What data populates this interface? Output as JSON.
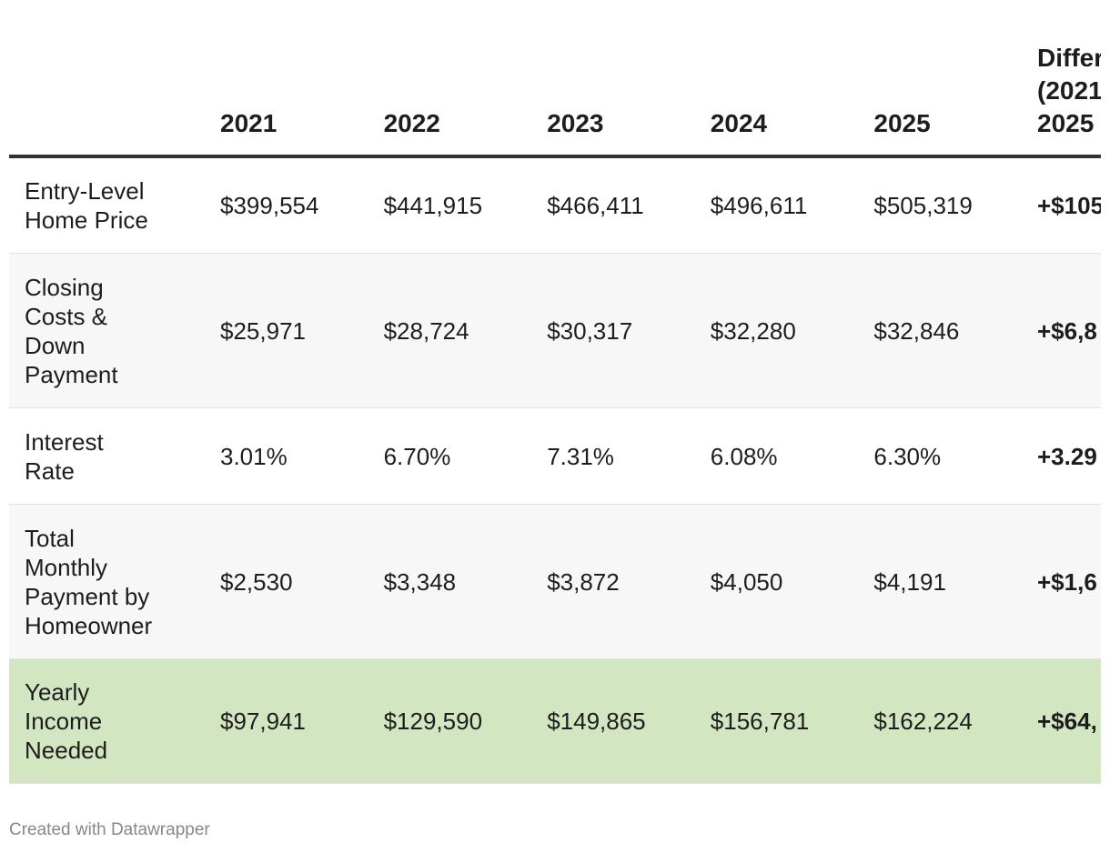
{
  "header": {
    "columns": [
      "2021",
      "2022",
      "2023",
      "2024",
      "2025"
    ],
    "last_column": [
      "Differ",
      "(2021",
      "2025"
    ]
  },
  "table": {
    "rows": [
      {
        "label": [
          "Entry-Level",
          "Home Price"
        ],
        "cells": [
          "$399,554",
          "$441,915",
          "$466,411",
          "$496,611",
          "$505,319"
        ],
        "difference": "+$105"
      },
      {
        "label": [
          "Closing",
          "Costs &",
          "Down",
          "Payment"
        ],
        "cells": [
          "$25,971",
          "$28,724",
          "$30,317",
          "$32,280",
          "$32,846"
        ],
        "difference": "+$6,8"
      },
      {
        "label": [
          "Interest",
          "Rate"
        ],
        "cells": [
          "3.01%",
          "6.70%",
          "7.31%",
          "6.08%",
          "6.30%"
        ],
        "difference": "+3.29"
      },
      {
        "label": [
          "Total",
          "Monthly",
          "Payment by",
          "Homeowner"
        ],
        "cells": [
          "$2,530",
          "$3,348",
          "$3,872",
          "$4,050",
          "$4,191"
        ],
        "difference": "+$1,6"
      },
      {
        "label": [
          "Yearly",
          "Income",
          "Needed"
        ],
        "cells": [
          "$97,941",
          "$129,590",
          "$149,865",
          "$156,781",
          "$162,224"
        ],
        "difference": "+$64,"
      }
    ]
  },
  "footer": "Created with Datawrapper"
}
